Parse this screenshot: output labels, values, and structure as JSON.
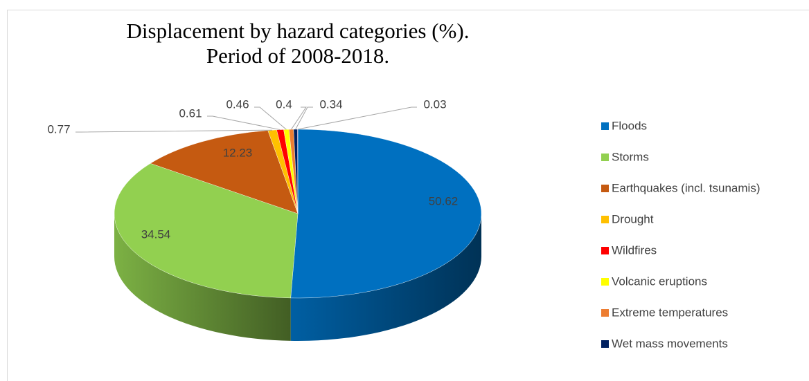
{
  "chart_data": {
    "type": "pie3d",
    "title": "Displacement by hazard categories (%).",
    "subtitle": "Period of 2008-2018.",
    "categories": [
      "Floods",
      "Storms",
      "Earthquakes (incl. tsunamis)",
      "Drought",
      "Wildfires",
      "Volcanic eruptions",
      "Extreme temperatures",
      "Wet mass movements",
      null
    ],
    "values": [
      50.62,
      34.54,
      12.23,
      0.77,
      0.61,
      0.46,
      0.4,
      0.34,
      0.03
    ],
    "colors": [
      "#0070c0",
      "#92d050",
      "#c55a11",
      "#ffc000",
      "#ff0000",
      "#ffff00",
      "#ed7d31",
      "#002060",
      "#7030a0"
    ],
    "legend": "right"
  }
}
